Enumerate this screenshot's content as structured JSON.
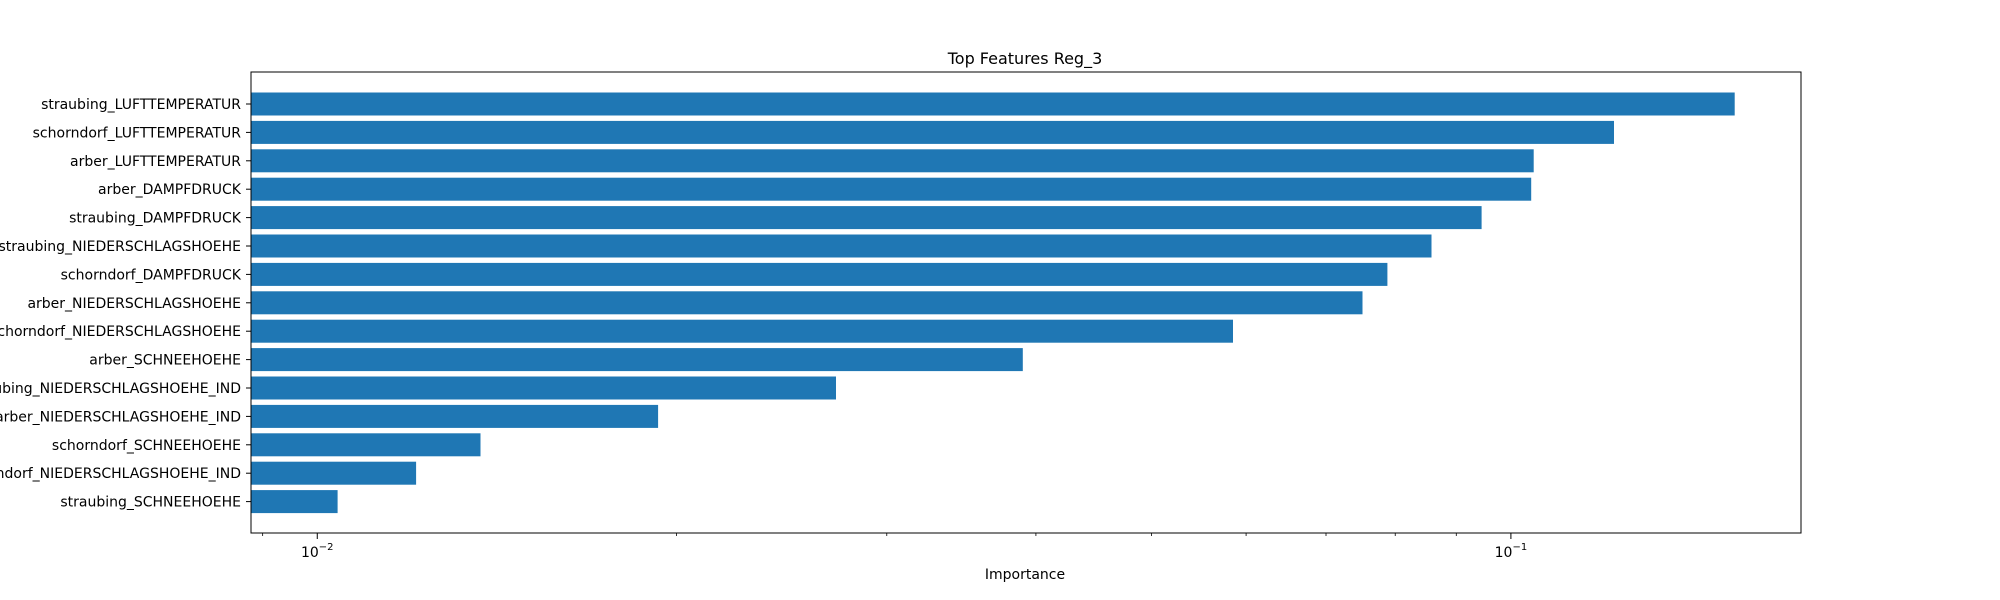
{
  "chart_data": {
    "type": "bar",
    "orientation": "horizontal",
    "title": "Top Features Reg_3",
    "xlabel": "Importance",
    "ylabel": "",
    "xscale": "log",
    "xlim": [
      0.0088,
      0.175
    ],
    "xticks": [
      {
        "value": 0.01,
        "label": "10",
        "exp": "−2"
      },
      {
        "value": 0.1,
        "label": "10",
        "exp": "−1"
      }
    ],
    "bar_color": "#1f77b4",
    "grid": false,
    "categories": [
      "straubing_LUFTTEMPERATUR",
      "schorndorf_LUFTTEMPERATUR",
      "arber_LUFTTEMPERATUR",
      "arber_DAMPFDRUCK",
      "straubing_DAMPFDRUCK",
      "straubing_NIEDERSCHLAGSHOEHE",
      "schorndorf_DAMPFDRUCK",
      "arber_NIEDERSCHLAGSHOEHE",
      "schorndorf_NIEDERSCHLAGSHOEHE",
      "arber_SCHNEEHOEHE",
      "straubing_NIEDERSCHLAGSHOEHE_IND",
      "arber_NIEDERSCHLAGSHOEHE_IND",
      "schorndorf_SCHNEEHOEHE",
      "schorndorf_NIEDERSCHLAGSHOEHE_IND",
      "straubing_SCHNEEHOEHE"
    ],
    "values": [
      0.154,
      0.122,
      0.1045,
      0.104,
      0.0945,
      0.0858,
      0.0788,
      0.0751,
      0.0585,
      0.039,
      0.0272,
      0.0193,
      0.0137,
      0.0121,
      0.0104
    ]
  }
}
